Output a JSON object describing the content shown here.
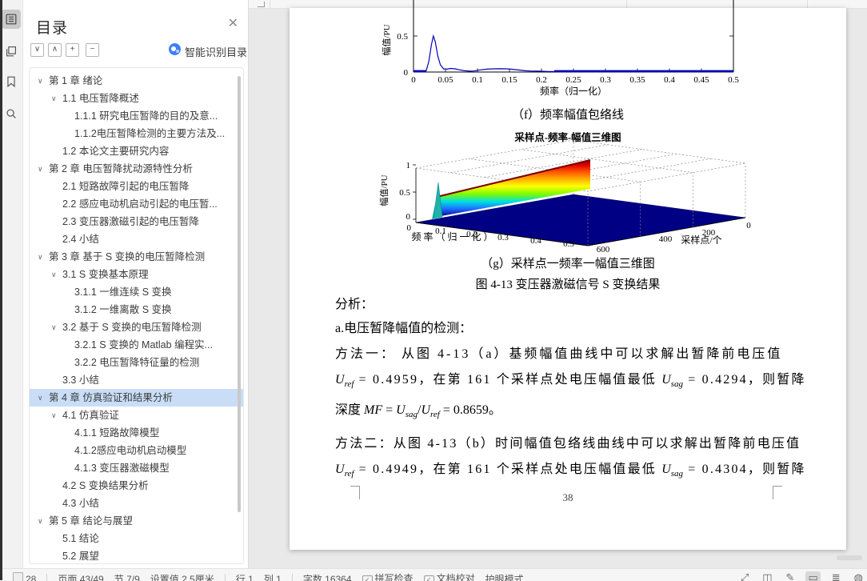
{
  "left_rail": {
    "icons": [
      {
        "name": "toc-panel",
        "active": true
      },
      {
        "name": "pages-panel",
        "active": false
      },
      {
        "name": "bookmark-panel",
        "active": false
      },
      {
        "name": "search-panel",
        "active": false
      }
    ]
  },
  "sidebar": {
    "title": "目录",
    "close_glyph": "✕",
    "tool_glyphs": [
      "∨",
      "∧",
      "+",
      "−"
    ],
    "tool_names": [
      "collapse-down",
      "collapse-up",
      "expand-all",
      "collapse-all"
    ],
    "smart_label": "智能识别目录",
    "toc": [
      {
        "l": 0,
        "c": 1,
        "t": "第 1 章  绪论"
      },
      {
        "l": 1,
        "c": 1,
        "t": "1.1  电压暂降概述"
      },
      {
        "l": 2,
        "c": 0,
        "t": "1.1.1  研究电压暂降的目的及意..."
      },
      {
        "l": 2,
        "c": 0,
        "t": "1.1.2电压暂降检测的主要方法及..."
      },
      {
        "l": 1,
        "c": 0,
        "t": "1.2  本论文主要研究内容"
      },
      {
        "l": 0,
        "c": 1,
        "t": "第 2 章  电压暂降扰动源特性分析"
      },
      {
        "l": 1,
        "c": 0,
        "t": "2.1  短路故障引起的电压暂降"
      },
      {
        "l": 1,
        "c": 0,
        "t": "2.2  感应电动机启动引起的电压暂..."
      },
      {
        "l": 1,
        "c": 0,
        "t": "2.3  变压器激磁引起的电压暂降"
      },
      {
        "l": 1,
        "c": 0,
        "t": "2.4  小结"
      },
      {
        "l": 0,
        "c": 1,
        "t": "第 3 章  基于 S 变换的电压暂降检测"
      },
      {
        "l": 1,
        "c": 1,
        "t": "3.1  S 变换基本原理"
      },
      {
        "l": 2,
        "c": 0,
        "t": "3.1.1  一维连续 S 变换"
      },
      {
        "l": 2,
        "c": 0,
        "t": "3.1.2  一维离散 S 变换"
      },
      {
        "l": 1,
        "c": 1,
        "t": "3.2  基于 S 变换的电压暂降检测"
      },
      {
        "l": 2,
        "c": 0,
        "t": "3.2.1  S 变换的 Matlab 编程实..."
      },
      {
        "l": 2,
        "c": 0,
        "t": "3.2.2  电压暂降特征量的检测"
      },
      {
        "l": 1,
        "c": 0,
        "t": "3.3  小结"
      },
      {
        "l": 0,
        "c": 1,
        "t": "第 4 章  仿真验证和结果分析",
        "sel": 1
      },
      {
        "l": 1,
        "c": 1,
        "t": "4.1  仿真验证"
      },
      {
        "l": 2,
        "c": 0,
        "t": "4.1.1  短路故障模型"
      },
      {
        "l": 2,
        "c": 0,
        "t": "4.1.2感应电动机启动模型"
      },
      {
        "l": 2,
        "c": 0,
        "t": "4.1.3  变压器激磁模型"
      },
      {
        "l": 1,
        "c": 0,
        "t": "4.2  S 变换结果分析"
      },
      {
        "l": 1,
        "c": 0,
        "t": "4.3  小结"
      },
      {
        "l": 0,
        "c": 1,
        "t": "第 5 章  结论与展望"
      },
      {
        "l": 1,
        "c": 0,
        "t": "5.1  结论"
      },
      {
        "l": 1,
        "c": 0,
        "t": "5.2  展望"
      }
    ]
  },
  "document": {
    "captions": {
      "f": "（f）频率幅值包络线",
      "g": "（g）采样点一频率一幅值三维图",
      "figure": "图 4-13  变压器激磁信号 S 变换结果"
    },
    "paragraphs": {
      "p1": "分析：",
      "p2": "a.电压暂降幅值的检测：",
      "p3": "方法一：  从图 4-13（a）基频幅值曲线中可以求解出暂降前电压值",
      "p6": "方法二：从图 4-13（b）时间幅值包络线曲线中可以求解出暂降前电压值"
    },
    "formula_lines": {
      "p4": [
        {
          "t": "U",
          "v": 1
        },
        {
          "t": "ref",
          "s": 1
        },
        {
          "t": " = 0.4959，在第 161 个采样点处电压幅值最低 "
        },
        {
          "t": "U",
          "v": 1
        },
        {
          "t": "sag",
          "s": 1
        },
        {
          "t": " = 0.4294，则暂降"
        }
      ],
      "p5": [
        {
          "t": "深度 "
        },
        {
          "t": "MF",
          "v": 1
        },
        {
          "t": " = "
        },
        {
          "t": "U",
          "v": 1
        },
        {
          "t": "sag",
          "s": 1
        },
        {
          "t": "/"
        },
        {
          "t": "U",
          "v": 1
        },
        {
          "t": "ref",
          "s": 1
        },
        {
          "t": " = 0.8659。"
        }
      ],
      "p7": [
        {
          "t": "U",
          "v": 1
        },
        {
          "t": "ref",
          "s": 1
        },
        {
          "t": " = 0.4949，在第 161 个采样点处电压幅值最低 "
        },
        {
          "t": "U",
          "v": 1
        },
        {
          "t": "sag",
          "s": 1
        },
        {
          "t": " = 0.4304，则暂降"
        }
      ]
    },
    "page_number": "38"
  },
  "chart_data": [
    {
      "type": "line",
      "caption": "（f）频率幅值包络线",
      "xlabel": "频率（归一化）",
      "ylabel": "幅值/PU",
      "xlim": [
        0,
        0.5
      ],
      "xticks": [
        0,
        0.05,
        0.1,
        0.15,
        0.2,
        0.25,
        0.3,
        0.35,
        0.4,
        0.45,
        0.5
      ],
      "yticks": [
        0,
        0.5
      ],
      "line_color": "#0000bb",
      "grid": false,
      "series": [
        {
          "name": "频率幅值包络线",
          "x": [
            0,
            0.015,
            0.02,
            0.024,
            0.028,
            0.031,
            0.034,
            0.038,
            0.042,
            0.047,
            0.052,
            0.058,
            0.065,
            0.072,
            0.08,
            0.088,
            0.095,
            0.105,
            0.115,
            0.125,
            0.135,
            0.145,
            0.155,
            0.165,
            0.175,
            0.185,
            0.195,
            0.21,
            0.23,
            0.3,
            0.4,
            0.5
          ],
          "y": [
            0.005,
            0.006,
            0.02,
            0.15,
            0.38,
            0.5,
            0.42,
            0.22,
            0.1,
            0.045,
            0.04,
            0.05,
            0.045,
            0.03,
            0.018,
            0.012,
            0.015,
            0.03,
            0.04,
            0.045,
            0.046,
            0.044,
            0.038,
            0.028,
            0.018,
            0.013,
            0.012,
            0.008,
            0.006,
            0.006,
            0.006,
            0.006
          ]
        }
      ]
    },
    {
      "type": "surface",
      "title": "采样点-频率-幅值三维图",
      "caption": "（g）采样点一频率一幅值三维图",
      "xlabel": "频率（归一化）",
      "xticks": [
        0,
        0.1,
        0.2,
        0.3,
        0.4,
        0.5
      ],
      "ylabel": "采样点/个",
      "yticks": [
        0,
        200,
        400,
        600
      ],
      "zlabel": "幅值/PU",
      "zticks": [
        0,
        0.5,
        1
      ],
      "colormap": "jet",
      "ridge": {
        "frequency": 0.03,
        "amplitude_range": [
          0.5,
          0.9
        ],
        "floor_amplitude": 0
      }
    }
  ],
  "status_bar": {
    "items": [
      {
        "t": "28",
        "cut": true
      },
      {
        "d": 1
      },
      {
        "t": "页面 43/49"
      },
      {
        "t": "节 7/9"
      },
      {
        "t": "设置值 2.5厘米"
      },
      {
        "d": 1
      },
      {
        "t": "行 1"
      },
      {
        "t": "列 1"
      },
      {
        "d": 1
      },
      {
        "t": "字数 16364"
      },
      {
        "t": "拼写检查",
        "icon": "spellcheck",
        "click": 1
      },
      {
        "t": "文档校对",
        "icon": "proofread",
        "click": 1
      },
      {
        "t": "护眼模式",
        "click": 1
      }
    ],
    "view_icons": [
      {
        "name": "fit-screen"
      },
      {
        "name": "read-mode"
      },
      {
        "name": "edit-pen"
      },
      {
        "name": "print-layout",
        "active": true
      },
      {
        "name": "outline-view"
      },
      {
        "name": "web-layout"
      }
    ]
  }
}
